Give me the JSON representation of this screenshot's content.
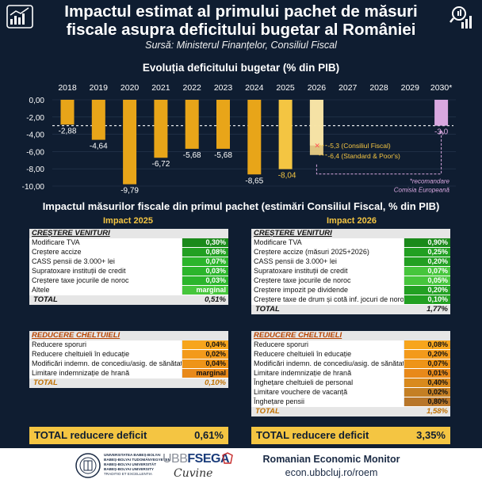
{
  "header": {
    "title_line1": "Impactul estimat al primului pachet de măsuri",
    "title_line2": "fiscale asupra deficitului bugetar al României",
    "source": "Sursă: Ministerul Finanțelor, Consiliul Fiscal"
  },
  "chart_title": "Evoluția deficitului bugetar (% din PIB)",
  "chart_data": {
    "type": "bar",
    "categories": [
      "2018",
      "2019",
      "2020",
      "2021",
      "2022",
      "2023",
      "2024",
      "2025",
      "2026",
      "2027",
      "2028",
      "2029",
      "2030*"
    ],
    "values": [
      -2.88,
      -4.64,
      -9.79,
      -6.72,
      -5.68,
      -5.68,
      -8.65,
      -8.04,
      null,
      null,
      null,
      null,
      -3.0
    ],
    "value_labels": [
      "-2,88",
      "-4,64",
      "-9,79",
      "-6,72",
      "-5,68",
      "-5,68",
      "-8,65",
      "-8,04",
      "",
      "",
      "",
      "",
      "-3,0"
    ],
    "projections_2026": [
      {
        "value": -5.3,
        "label": "-5,3 (Consiliul Fiscal)"
      },
      {
        "value": -6.4,
        "label": "-6,4 (Standard & Poor's)"
      }
    ],
    "ylim": [
      -10,
      0
    ],
    "yticks": [
      "0,00",
      "-2,00",
      "-4,00",
      "-6,00",
      "-8,00",
      "-10,00"
    ],
    "reference_line": -3.0,
    "note_line1": "*recomandare",
    "note_line2": "Comisia Europeană",
    "colors": {
      "historic": "#e8a519",
      "recent": "#f4c542",
      "target": "#d9a8e0",
      "projection": "#f5d889",
      "ref": "#d9a8e0"
    }
  },
  "measures": {
    "title": "Impactul măsurilor fiscale din primul pachet (estimări Consiliul Fiscal, % din PIB)",
    "impact_2025": "Impact 2025",
    "impact_2026": "Impact 2026",
    "revenue_title": "CREȘTERE VENITURI",
    "spending_title": "REDUCERE CHELTUIELI",
    "total_label": "TOTAL",
    "rev_2025": [
      {
        "label": "Modificare TVA",
        "value": "0,30%"
      },
      {
        "label": "Creștere accize",
        "value": "0,08%"
      },
      {
        "label": "CASS pensii de 3.000+ lei",
        "value": "0,07%"
      },
      {
        "label": "Supratoxare instituții de credit",
        "value": "0,03%"
      },
      {
        "label": "Creștere taxe jocurile de noroc",
        "value": "0,03%"
      },
      {
        "label": "Altele",
        "value": "marginal"
      }
    ],
    "rev_2025_total": "0,51%",
    "rev_2026": [
      {
        "label": "Modificare TVA",
        "value": "0,90%"
      },
      {
        "label": "Creștere accize (măsuri 2025+2026)",
        "value": "0,25%"
      },
      {
        "label": "CASS pensii de 3.000+ lei",
        "value": "0,20%"
      },
      {
        "label": "Supratoxare instituții de credit",
        "value": "0,07%"
      },
      {
        "label": "Creștere taxe jocurile de noroc",
        "value": "0,05%"
      },
      {
        "label": "Creștere impozit pe dividende",
        "value": "0,20%"
      },
      {
        "label": "Creștere taxe de drum și cotă inf. jocuri de noroc",
        "value": "0,10%"
      }
    ],
    "rev_2026_total": "1,77%",
    "sp_2025": [
      {
        "label": "Reducere sporuri",
        "value": "0,04%"
      },
      {
        "label": "Reducere cheltuieli în educație",
        "value": "0,02%"
      },
      {
        "label": "Modificări indemn. de concediu/asig. de sănătate",
        "value": "0,04%"
      },
      {
        "label": "Limitare indemnizație de hrană",
        "value": "marginal"
      }
    ],
    "sp_2025_total": "0,10%",
    "sp_2026": [
      {
        "label": "Reducere sporuri",
        "value": "0,08%"
      },
      {
        "label": "Reducere cheltuieli în educație",
        "value": "0,20%"
      },
      {
        "label": "Modificări indemn. de concediu/asig. de sănătate",
        "value": "0,07%"
      },
      {
        "label": "Limitare indemnizație de hrană",
        "value": "0,01%"
      },
      {
        "label": "Înghețare cheltuieli de personal",
        "value": "0,40%"
      },
      {
        "label": "Limitare vouchere de vacanță",
        "value": "0,02%"
      },
      {
        "label": "Înghețare pensii",
        "value": "0,80%"
      }
    ],
    "sp_2026_total": "1,58%",
    "deficit_label": "TOTAL reducere deficit",
    "deficit_2025": "0,61%",
    "deficit_2026": "3,35%"
  },
  "footer": {
    "uni_line1": "UNIVERSITATEA BABEȘ-BOLYAI",
    "uni_line2": "BABEȘ-BOLYAI TUDOMÁNYEGYETEM",
    "uni_line3": "BABEȘ-BOLYAI UNIVERSITÄT",
    "uni_line4": "BABEȘ-BOLYAI UNIVERSITY",
    "uni_line5": "TRADITIO ET EXCELLENTIA",
    "faculty_logo_a": "UBB",
    "faculty_logo_b": "FSEGA",
    "signature": "Cuvine",
    "monitor_title": "Romanian Economic Monitor",
    "monitor_url": "econ.ubbcluj.ro/roem"
  }
}
